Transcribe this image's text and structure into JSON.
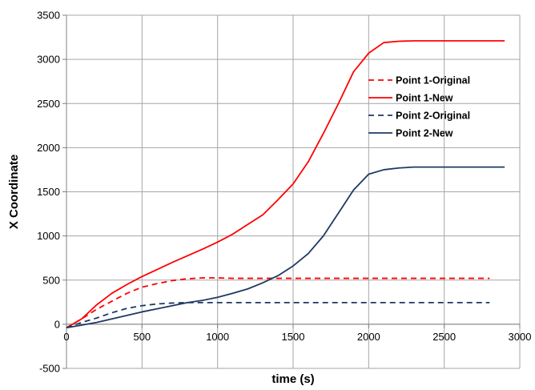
{
  "chart_data": {
    "type": "line",
    "xlabel": "time (s)",
    "ylabel": "X Coordinate",
    "xlim": [
      0,
      3000
    ],
    "ylim": [
      -500,
      3500
    ],
    "xticks": [
      0,
      500,
      1000,
      1500,
      2000,
      2500,
      3000
    ],
    "yticks": [
      -500,
      0,
      500,
      1000,
      1500,
      2000,
      2500,
      3000,
      3500
    ],
    "grid": true,
    "legend_position": "right",
    "series": [
      {
        "name": "Point 1-Original",
        "color": "#ff0000",
        "dash": "dashed",
        "x": [
          0,
          100,
          200,
          300,
          400,
          500,
          600,
          700,
          800,
          900,
          1000,
          1100,
          1200,
          1400,
          1600,
          1800,
          2000,
          2200,
          2400,
          2600,
          2800
        ],
        "y": [
          -40,
          60,
          170,
          260,
          350,
          420,
          460,
          495,
          515,
          525,
          525,
          520,
          520,
          520,
          520,
          520,
          520,
          520,
          520,
          520,
          520
        ]
      },
      {
        "name": "Point 1-New",
        "color": "#ff0000",
        "dash": "solid",
        "x": [
          0,
          100,
          200,
          300,
          400,
          500,
          600,
          700,
          800,
          900,
          1000,
          1100,
          1200,
          1300,
          1400,
          1500,
          1600,
          1700,
          1800,
          1900,
          2000,
          2100,
          2200,
          2300,
          2400,
          2500,
          2600,
          2700,
          2800,
          2900
        ],
        "y": [
          -40,
          60,
          220,
          350,
          450,
          540,
          620,
          700,
          775,
          850,
          930,
          1020,
          1130,
          1240,
          1410,
          1590,
          1840,
          2160,
          2500,
          2860,
          3070,
          3190,
          3205,
          3210,
          3210,
          3210,
          3210,
          3210,
          3210,
          3210
        ]
      },
      {
        "name": "Point 2-Original",
        "color": "#1f3864",
        "dash": "dashed",
        "x": [
          0,
          100,
          200,
          300,
          400,
          500,
          600,
          700,
          800,
          900,
          1000,
          1200,
          1400,
          1600,
          1800,
          2000,
          2200,
          2400,
          2600,
          2800
        ],
        "y": [
          -40,
          20,
          70,
          130,
          180,
          210,
          230,
          240,
          245,
          245,
          245,
          245,
          245,
          245,
          245,
          245,
          245,
          245,
          245,
          245
        ]
      },
      {
        "name": "Point 2-New",
        "color": "#1f3864",
        "dash": "solid",
        "x": [
          0,
          100,
          200,
          300,
          400,
          500,
          600,
          700,
          800,
          900,
          1000,
          1100,
          1200,
          1300,
          1400,
          1500,
          1600,
          1700,
          1800,
          1900,
          2000,
          2100,
          2200,
          2300,
          2400,
          2500,
          2600,
          2700,
          2800,
          2900
        ],
        "y": [
          -40,
          -10,
          20,
          60,
          100,
          140,
          175,
          210,
          245,
          270,
          305,
          350,
          400,
          470,
          550,
          660,
          800,
          1000,
          1260,
          1520,
          1700,
          1750,
          1770,
          1780,
          1780,
          1780,
          1780,
          1780,
          1780,
          1780
        ]
      }
    ]
  }
}
